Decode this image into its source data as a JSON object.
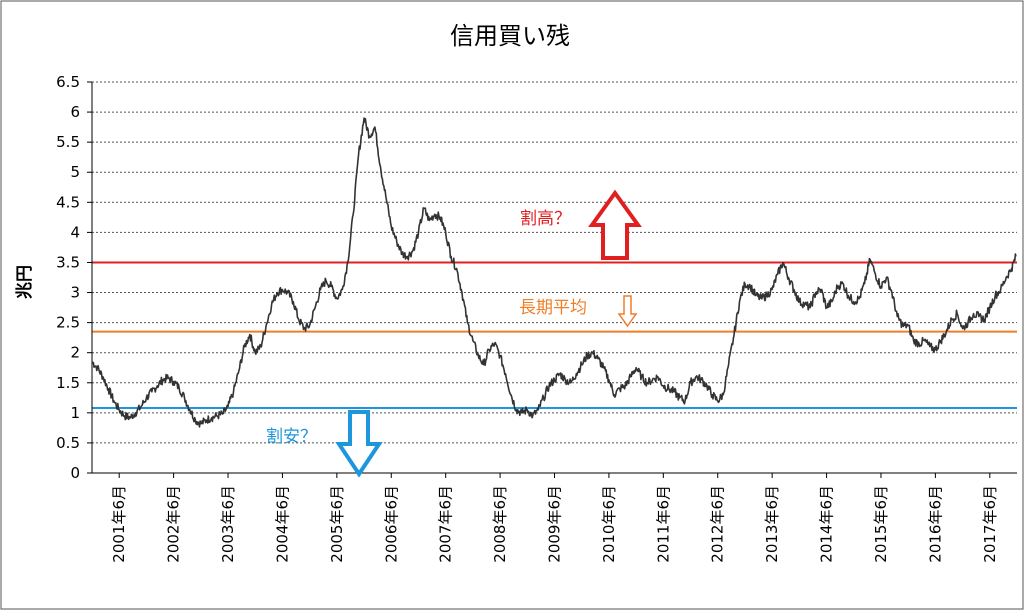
{
  "chart_data": {
    "type": "line",
    "title": "信用買い残",
    "ylabel": "兆円",
    "xlabel": "",
    "ylim": [
      0,
      6.5
    ],
    "y_ticks": [
      "0",
      "0.5",
      "1",
      "1.5",
      "2",
      "2.5",
      "3",
      "3.5",
      "4",
      "4.5",
      "5",
      "5.5",
      "6",
      "6.5"
    ],
    "x_tick_labels": [
      "2001年6月",
      "2002年6月",
      "2003年6月",
      "2004年6月",
      "2005年6月",
      "2006年6月",
      "2007年6月",
      "2008年6月",
      "2009年6月",
      "2010年6月",
      "2011年6月",
      "2012年6月",
      "2013年6月",
      "2014年6月",
      "2015年6月",
      "2016年6月",
      "2017年6月"
    ],
    "x_range": [
      2001.0,
      2018.0
    ],
    "grid": "horizontal-dotted",
    "legend": "none",
    "series": [
      {
        "color": "#333333",
        "points": [
          [
            2001.0,
            1.85
          ],
          [
            2001.1,
            1.75
          ],
          [
            2001.2,
            1.6
          ],
          [
            2001.3,
            1.4
          ],
          [
            2001.4,
            1.2
          ],
          [
            2001.5,
            1.05
          ],
          [
            2001.6,
            0.95
          ],
          [
            2001.7,
            0.92
          ],
          [
            2001.8,
            1.0
          ],
          [
            2001.9,
            1.1
          ],
          [
            2002.0,
            1.25
          ],
          [
            2002.1,
            1.35
          ],
          [
            2002.2,
            1.45
          ],
          [
            2002.3,
            1.55
          ],
          [
            2002.4,
            1.58
          ],
          [
            2002.5,
            1.52
          ],
          [
            2002.6,
            1.42
          ],
          [
            2002.7,
            1.25
          ],
          [
            2002.8,
            1.05
          ],
          [
            2002.9,
            0.88
          ],
          [
            2003.0,
            0.82
          ],
          [
            2003.1,
            0.88
          ],
          [
            2003.2,
            0.92
          ],
          [
            2003.3,
            0.95
          ],
          [
            2003.4,
            0.98
          ],
          [
            2003.5,
            1.1
          ],
          [
            2003.6,
            1.35
          ],
          [
            2003.7,
            1.7
          ],
          [
            2003.8,
            2.1
          ],
          [
            2003.9,
            2.3
          ],
          [
            2004.0,
            2.0
          ],
          [
            2004.1,
            2.1
          ],
          [
            2004.2,
            2.45
          ],
          [
            2004.3,
            2.8
          ],
          [
            2004.4,
            3.0
          ],
          [
            2004.5,
            3.05
          ],
          [
            2004.6,
            3.0
          ],
          [
            2004.7,
            2.85
          ],
          [
            2004.8,
            2.55
          ],
          [
            2004.9,
            2.4
          ],
          [
            2005.0,
            2.45
          ],
          [
            2005.1,
            2.75
          ],
          [
            2005.2,
            3.05
          ],
          [
            2005.3,
            3.2
          ],
          [
            2005.4,
            3.1
          ],
          [
            2005.5,
            2.9
          ],
          [
            2005.6,
            3.05
          ],
          [
            2005.7,
            3.5
          ],
          [
            2005.8,
            4.3
          ],
          [
            2005.9,
            5.3
          ],
          [
            2006.0,
            5.9
          ],
          [
            2006.1,
            5.6
          ],
          [
            2006.2,
            5.75
          ],
          [
            2006.3,
            5.1
          ],
          [
            2006.4,
            4.6
          ],
          [
            2006.5,
            4.1
          ],
          [
            2006.6,
            3.85
          ],
          [
            2006.7,
            3.65
          ],
          [
            2006.8,
            3.6
          ],
          [
            2006.9,
            3.7
          ],
          [
            2007.0,
            4.0
          ],
          [
            2007.1,
            4.4
          ],
          [
            2007.2,
            4.2
          ],
          [
            2007.3,
            4.3
          ],
          [
            2007.4,
            4.25
          ],
          [
            2007.5,
            4.0
          ],
          [
            2007.6,
            3.6
          ],
          [
            2007.7,
            3.4
          ],
          [
            2007.8,
            3.0
          ],
          [
            2007.9,
            2.5
          ],
          [
            2008.0,
            2.2
          ],
          [
            2008.1,
            1.95
          ],
          [
            2008.2,
            1.8
          ],
          [
            2008.3,
            2.05
          ],
          [
            2008.4,
            2.15
          ],
          [
            2008.5,
            1.95
          ],
          [
            2008.6,
            1.65
          ],
          [
            2008.7,
            1.3
          ],
          [
            2008.8,
            1.05
          ],
          [
            2008.9,
            1.0
          ],
          [
            2009.0,
            1.05
          ],
          [
            2009.1,
            0.95
          ],
          [
            2009.2,
            1.05
          ],
          [
            2009.3,
            1.25
          ],
          [
            2009.4,
            1.45
          ],
          [
            2009.5,
            1.55
          ],
          [
            2009.6,
            1.65
          ],
          [
            2009.7,
            1.55
          ],
          [
            2009.8,
            1.5
          ],
          [
            2009.9,
            1.65
          ],
          [
            2010.0,
            1.8
          ],
          [
            2010.1,
            1.95
          ],
          [
            2010.2,
            2.0
          ],
          [
            2010.3,
            1.9
          ],
          [
            2010.4,
            1.75
          ],
          [
            2010.5,
            1.55
          ],
          [
            2010.6,
            1.3
          ],
          [
            2010.7,
            1.4
          ],
          [
            2010.8,
            1.45
          ],
          [
            2010.9,
            1.6
          ],
          [
            2011.0,
            1.75
          ],
          [
            2011.1,
            1.6
          ],
          [
            2011.2,
            1.5
          ],
          [
            2011.3,
            1.55
          ],
          [
            2011.4,
            1.6
          ],
          [
            2011.5,
            1.45
          ],
          [
            2011.6,
            1.4
          ],
          [
            2011.7,
            1.35
          ],
          [
            2011.8,
            1.25
          ],
          [
            2011.9,
            1.2
          ],
          [
            2012.0,
            1.5
          ],
          [
            2012.1,
            1.6
          ],
          [
            2012.2,
            1.55
          ],
          [
            2012.3,
            1.45
          ],
          [
            2012.4,
            1.3
          ],
          [
            2012.5,
            1.2
          ],
          [
            2012.6,
            1.3
          ],
          [
            2012.7,
            1.8
          ],
          [
            2012.8,
            2.3
          ],
          [
            2012.9,
            2.85
          ],
          [
            2013.0,
            3.15
          ],
          [
            2013.1,
            3.1
          ],
          [
            2013.2,
            2.95
          ],
          [
            2013.3,
            2.9
          ],
          [
            2013.4,
            2.95
          ],
          [
            2013.5,
            3.05
          ],
          [
            2013.6,
            3.3
          ],
          [
            2013.7,
            3.5
          ],
          [
            2013.8,
            3.25
          ],
          [
            2013.9,
            3.05
          ],
          [
            2014.0,
            2.85
          ],
          [
            2014.1,
            2.8
          ],
          [
            2014.2,
            2.75
          ],
          [
            2014.3,
            3.0
          ],
          [
            2014.4,
            3.05
          ],
          [
            2014.5,
            2.75
          ],
          [
            2014.6,
            2.85
          ],
          [
            2014.7,
            3.1
          ],
          [
            2014.8,
            3.15
          ],
          [
            2014.9,
            2.95
          ],
          [
            2015.0,
            2.85
          ],
          [
            2015.1,
            2.9
          ],
          [
            2015.2,
            3.15
          ],
          [
            2015.3,
            3.55
          ],
          [
            2015.4,
            3.3
          ],
          [
            2015.5,
            3.1
          ],
          [
            2015.6,
            3.25
          ],
          [
            2015.7,
            3.0
          ],
          [
            2015.8,
            2.6
          ],
          [
            2015.9,
            2.45
          ],
          [
            2016.0,
            2.45
          ],
          [
            2016.1,
            2.2
          ],
          [
            2016.2,
            2.15
          ],
          [
            2016.3,
            2.2
          ],
          [
            2016.4,
            2.1
          ],
          [
            2016.5,
            2.05
          ],
          [
            2016.6,
            2.2
          ],
          [
            2016.7,
            2.35
          ],
          [
            2016.8,
            2.55
          ],
          [
            2016.9,
            2.65
          ],
          [
            2017.0,
            2.4
          ],
          [
            2017.1,
            2.5
          ],
          [
            2017.2,
            2.65
          ],
          [
            2017.3,
            2.6
          ],
          [
            2017.4,
            2.55
          ],
          [
            2017.5,
            2.75
          ],
          [
            2017.6,
            2.95
          ],
          [
            2017.7,
            3.05
          ],
          [
            2017.8,
            3.25
          ],
          [
            2017.9,
            3.4
          ],
          [
            2017.98,
            3.6
          ]
        ]
      }
    ],
    "reference_lines": [
      {
        "value": 3.5,
        "color": "#e02020"
      },
      {
        "value": 2.35,
        "color": "#f07d28"
      },
      {
        "value": 1.08,
        "color": "#1e96dc"
      }
    ],
    "annotations": [
      {
        "text": "割高？",
        "color": "#e02020"
      },
      {
        "text": "長期平均",
        "color": "#f07d28"
      },
      {
        "text": "割安？",
        "color": "#1e96dc"
      }
    ]
  }
}
